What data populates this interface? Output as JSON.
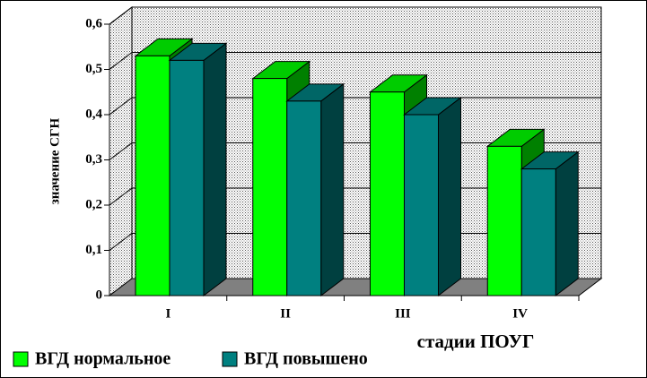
{
  "chart_data": {
    "type": "bar3d",
    "x_label": "стадии ПОУГ",
    "y_label": "значение СГН",
    "categories": [
      "I",
      "II",
      "III",
      "IV"
    ],
    "series": [
      {
        "name": "ВГД нормальное",
        "color": "#00ff00",
        "values": [
          0.53,
          0.48,
          0.45,
          0.33
        ]
      },
      {
        "name": "ВГД повышено",
        "color": "#008080",
        "values": [
          0.52,
          0.43,
          0.4,
          0.28
        ]
      }
    ],
    "ylim": [
      0,
      0.6
    ],
    "yticks": [
      0,
      {
        "value": 0.1,
        "label": "0,1"
      },
      {
        "value": 0.2,
        "label": "0,2"
      },
      {
        "value": 0.3,
        "label": "0,3"
      },
      {
        "value": 0.4,
        "label": "0,4"
      },
      {
        "value": 0.5,
        "label": "0,5"
      },
      {
        "value": 0.6,
        "label": "0,6"
      }
    ],
    "grid": true
  }
}
